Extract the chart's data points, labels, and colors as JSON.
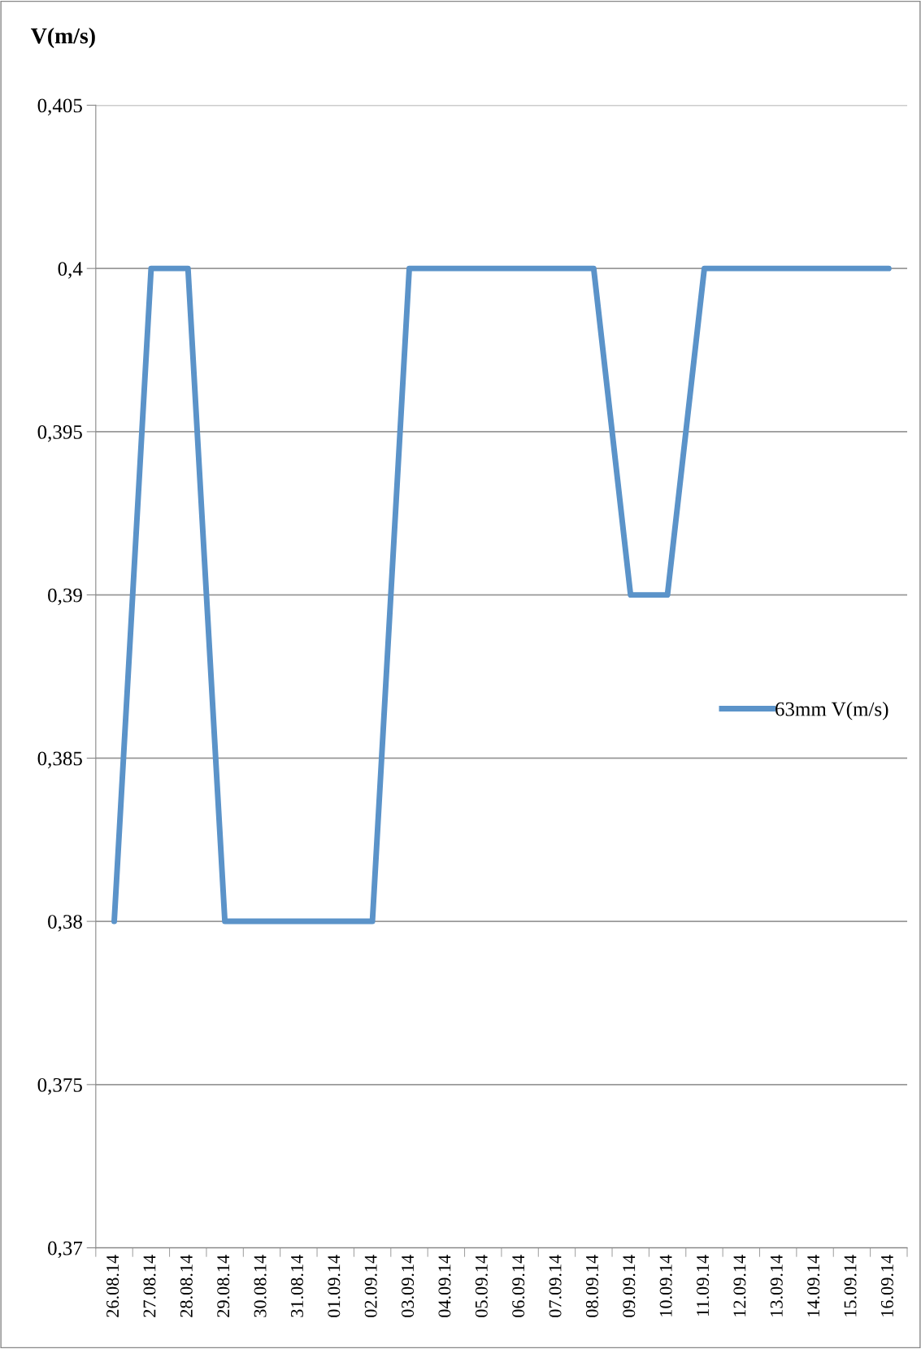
{
  "chart_data": {
    "type": "line",
    "ylabel": "V(m/s)",
    "categories": [
      "26.08.14",
      "27.08.14",
      "28.08.14",
      "29.08.14",
      "30.08.14",
      "31.08.14",
      "01.09.14",
      "02.09.14",
      "03.09.14",
      "04.09.14",
      "05.09.14",
      "06.09.14",
      "07.09.14",
      "08.09.14",
      "09.09.14",
      "10.09.14",
      "11.09.14",
      "12.09.14",
      "13.09.14",
      "14.09.14",
      "15.09.14",
      "16.09.14"
    ],
    "series": [
      {
        "name": "63mm V(m/s)",
        "color": "#5b93c9",
        "values": [
          0.38,
          0.4,
          0.4,
          0.38,
          0.38,
          0.38,
          0.38,
          0.38,
          0.4,
          0.4,
          0.4,
          0.4,
          0.4,
          0.4,
          0.39,
          0.39,
          0.4,
          0.4,
          0.4,
          0.4,
          0.4,
          0.4
        ]
      }
    ],
    "ylim": [
      0.37,
      0.405
    ],
    "yticks": [
      {
        "value": 0.37,
        "label": "0,37"
      },
      {
        "value": 0.375,
        "label": "0,375"
      },
      {
        "value": 0.38,
        "label": "0,38"
      },
      {
        "value": 0.385,
        "label": "0,385"
      },
      {
        "value": 0.39,
        "label": "0,39"
      },
      {
        "value": 0.395,
        "label": "0,395"
      },
      {
        "value": 0.4,
        "label": "0,4"
      },
      {
        "value": 0.405,
        "label": "0,405"
      }
    ],
    "grid": "y",
    "legend": "right",
    "marker": "none",
    "line_style": "solid"
  }
}
